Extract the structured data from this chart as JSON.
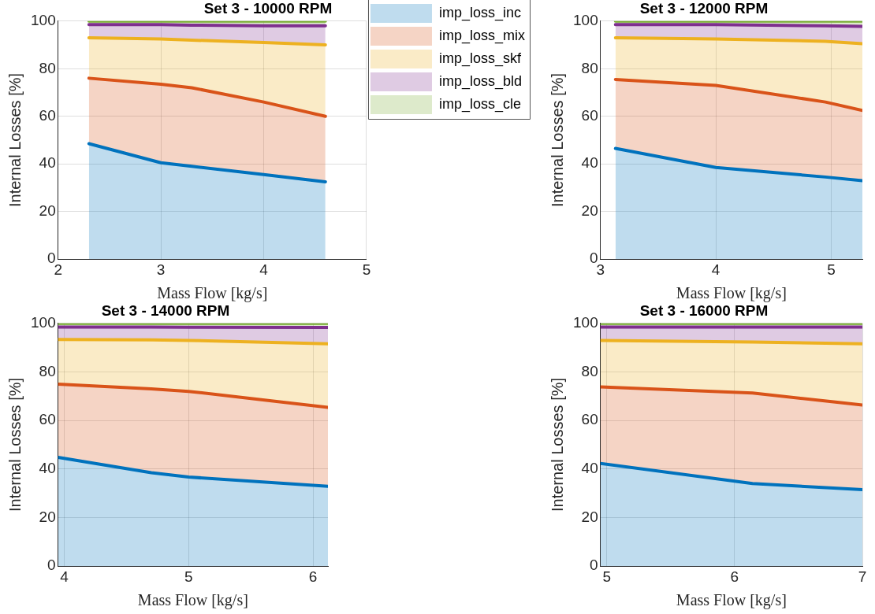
{
  "chart_data": [
    {
      "type": "area",
      "stacked": true,
      "title": "Set 3 - 10000 RPM",
      "xlabel": "Mass Flow [kg/s]",
      "ylabel": "Internal Losses [%]",
      "x": [
        2.3,
        3.0,
        3.3,
        4.0,
        4.6
      ],
      "xlim": [
        2,
        5
      ],
      "xticks": [
        2,
        3,
        4,
        5
      ],
      "ylim": [
        0,
        100
      ],
      "yticks": [
        0,
        20,
        40,
        60,
        80,
        100
      ],
      "grid": true,
      "legend": "right",
      "series": [
        {
          "name": "imp_loss_inc",
          "color": "#0072bd",
          "values": [
            48.5,
            40.5,
            39,
            35.5,
            32.5
          ]
        },
        {
          "name": "imp_loss_mix",
          "color": "#d95319",
          "values": [
            27.5,
            33,
            33,
            30.5,
            27.5
          ]
        },
        {
          "name": "imp_loss_skf",
          "color": "#edb120",
          "values": [
            17,
            19,
            20,
            25,
            30
          ]
        },
        {
          "name": "imp_loss_bld",
          "color": "#7e2f8e",
          "values": [
            5.5,
            6,
            6.3,
            7,
            8
          ]
        },
        {
          "name": "imp_loss_cle",
          "color": "#77ac30",
          "values": [
            1.5,
            1.5,
            1.7,
            2,
            2
          ]
        }
      ]
    },
    {
      "type": "area",
      "stacked": true,
      "title": "Set 3 - 12000 RPM",
      "xlabel": "Mass Flow [kg/s]",
      "ylabel": "Internal Losses [%]",
      "x": [
        3.13,
        4.0,
        4.95,
        5.27
      ],
      "xlim": [
        3,
        5.27
      ],
      "xticks": [
        3,
        4,
        5
      ],
      "ylim": [
        0,
        100
      ],
      "yticks": [
        0,
        20,
        40,
        60,
        80,
        100
      ],
      "grid": true,
      "series": [
        {
          "color": "#0072bd",
          "values": [
            46.5,
            38.5,
            34.5,
            33
          ]
        },
        {
          "color": "#d95319",
          "values": [
            29,
            34.5,
            31.5,
            29.5
          ]
        },
        {
          "color": "#edb120",
          "values": [
            17.5,
            19.5,
            25.5,
            28
          ]
        },
        {
          "color": "#7e2f8e",
          "values": [
            5.5,
            6,
            6.5,
            7.3
          ]
        },
        {
          "color": "#77ac30",
          "values": [
            1.5,
            1.5,
            2,
            2.2
          ]
        }
      ]
    },
    {
      "type": "area",
      "stacked": true,
      "title": "Set 3 - 14000 RPM",
      "xlabel": "Mass Flow [kg/s]",
      "ylabel": "Internal Losses [%]",
      "x": [
        3.95,
        4.7,
        5.0,
        6.12
      ],
      "xlim": [
        3.95,
        6.12
      ],
      "xticks": [
        4,
        5,
        6
      ],
      "ylim": [
        0,
        100
      ],
      "yticks": [
        0,
        20,
        40,
        60,
        80,
        100
      ],
      "grid": true,
      "series": [
        {
          "color": "#0072bd",
          "values": [
            44.8,
            38.5,
            36.7,
            32.9
          ]
        },
        {
          "color": "#d95319",
          "values": [
            30.2,
            34.5,
            35.3,
            32.5
          ]
        },
        {
          "color": "#edb120",
          "values": [
            18.4,
            20.2,
            21,
            26.2
          ]
        },
        {
          "color": "#7e2f8e",
          "values": [
            5.1,
            5.3,
            5.4,
            6.7
          ]
        },
        {
          "color": "#77ac30",
          "values": [
            1.5,
            1.5,
            1.6,
            1.7
          ]
        }
      ]
    },
    {
      "type": "area",
      "stacked": true,
      "title": "Set 3 - 16000 RPM",
      "xlabel": "Mass Flow [kg/s]",
      "ylabel": "Internal Losses [%]",
      "x": [
        4.95,
        6.14,
        7.0
      ],
      "xlim": [
        4.95,
        7
      ],
      "xticks": [
        5,
        6,
        7
      ],
      "ylim": [
        0,
        100
      ],
      "yticks": [
        0,
        20,
        40,
        60,
        80,
        100
      ],
      "grid": true,
      "series": [
        {
          "color": "#0072bd",
          "values": [
            42.3,
            34,
            31.5
          ]
        },
        {
          "color": "#d95319",
          "values": [
            31.5,
            37.3,
            34.9
          ]
        },
        {
          "color": "#edb120",
          "values": [
            19.2,
            21,
            25.2
          ]
        },
        {
          "color": "#7e2f8e",
          "values": [
            5.5,
            6.2,
            6.9
          ]
        },
        {
          "color": "#77ac30",
          "values": [
            1.5,
            1.5,
            1.5
          ]
        }
      ]
    }
  ]
}
